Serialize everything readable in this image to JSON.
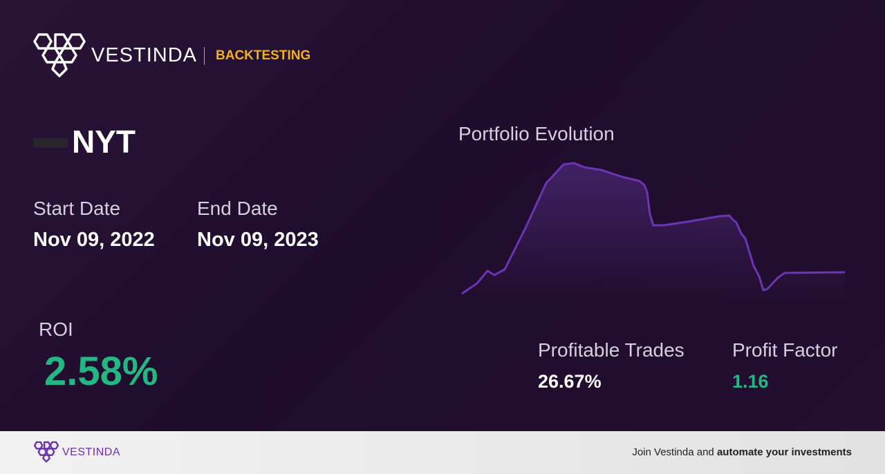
{
  "header": {
    "brand": "VESTINDA",
    "section": "BACKTESTING"
  },
  "ticker": "NYT",
  "start_date": {
    "label": "Start Date",
    "value": "Nov 09, 2022"
  },
  "end_date": {
    "label": "End Date",
    "value": "Nov 09, 2023"
  },
  "roi": {
    "label": "ROI",
    "value": "2.58%"
  },
  "portfolio_evolution": {
    "title": "Portfolio Evolution"
  },
  "profitable_trades": {
    "label": "Profitable Trades",
    "value": "26.67%"
  },
  "profit_factor": {
    "label": "Profit Factor",
    "value": "1.16"
  },
  "footer": {
    "brand": "VESTINDA",
    "cta_prefix": "Join Vestinda and",
    "cta_emphasis": "automate your investments"
  }
}
